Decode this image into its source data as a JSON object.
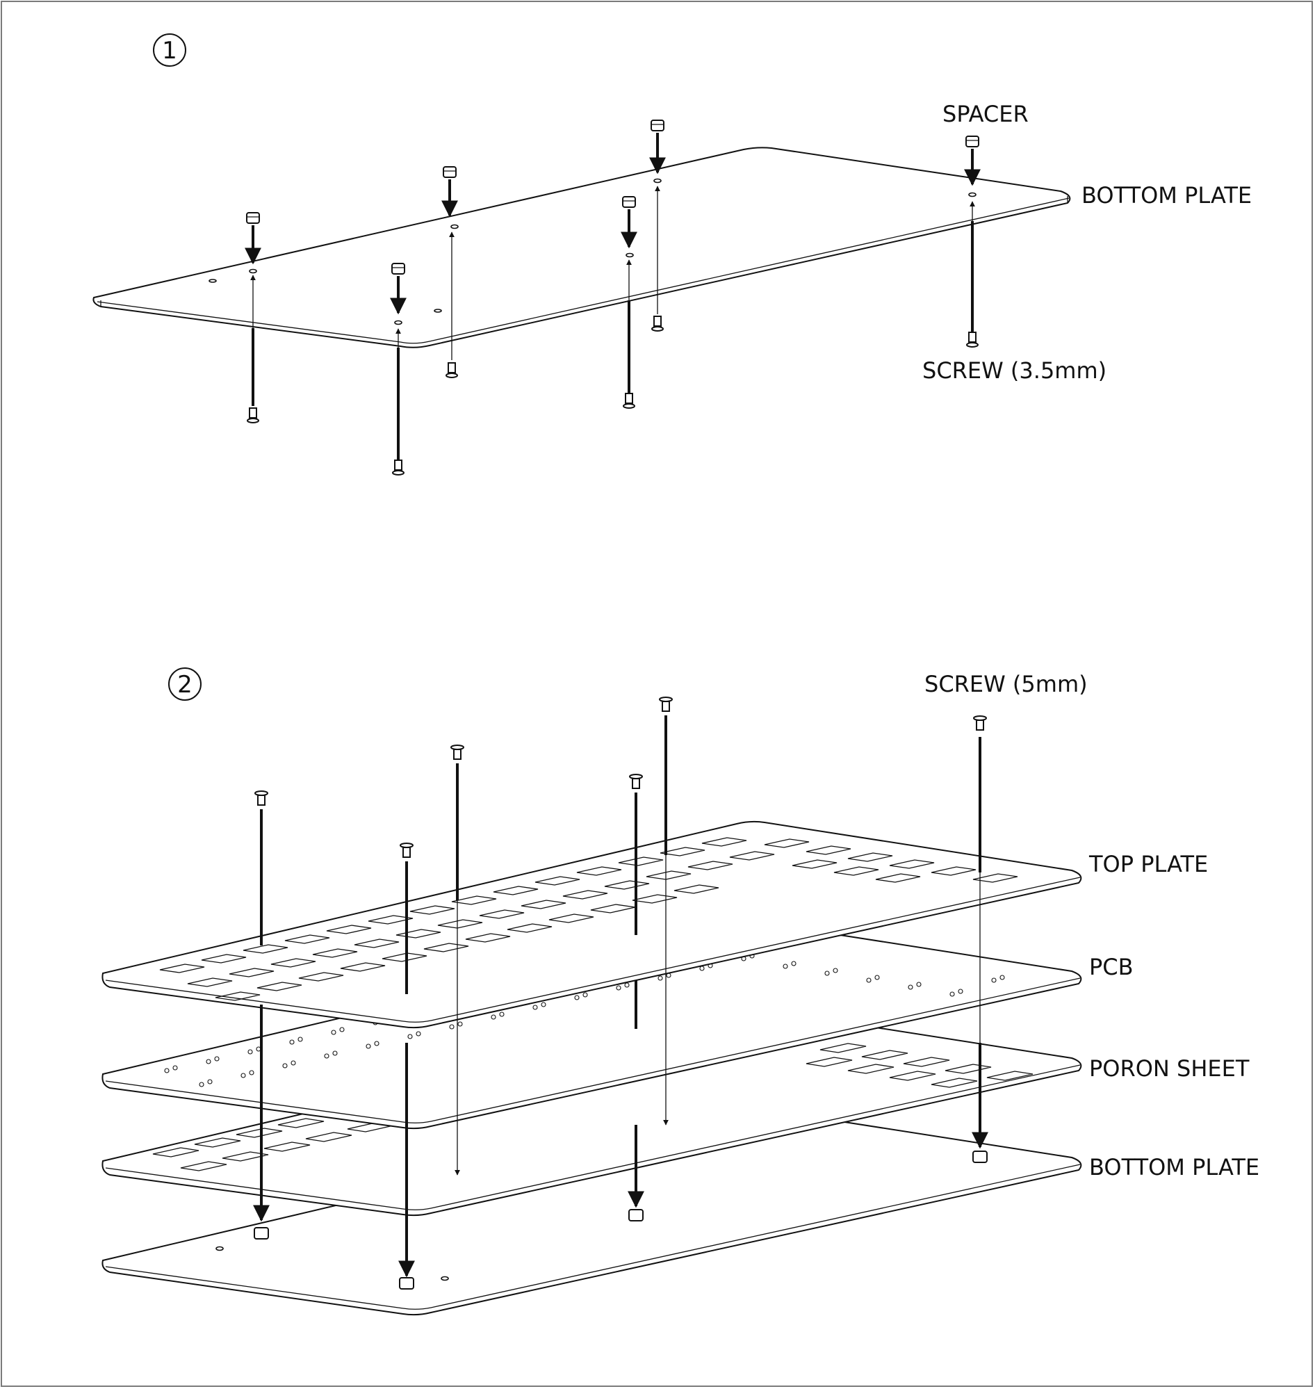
{
  "steps": [
    {
      "number": "1",
      "labels": {
        "spacer": "SPACER",
        "bottom_plate": "BOTTOM PLATE",
        "screw": "SCREW (3.5mm)"
      }
    },
    {
      "number": "2",
      "labels": {
        "screw": "SCREW (5mm)",
        "top_plate": "TOP PLATE",
        "pcb": "PCB",
        "poron_sheet": "PORON SHEET",
        "bottom_plate": "BOTTOM PLATE"
      }
    }
  ]
}
